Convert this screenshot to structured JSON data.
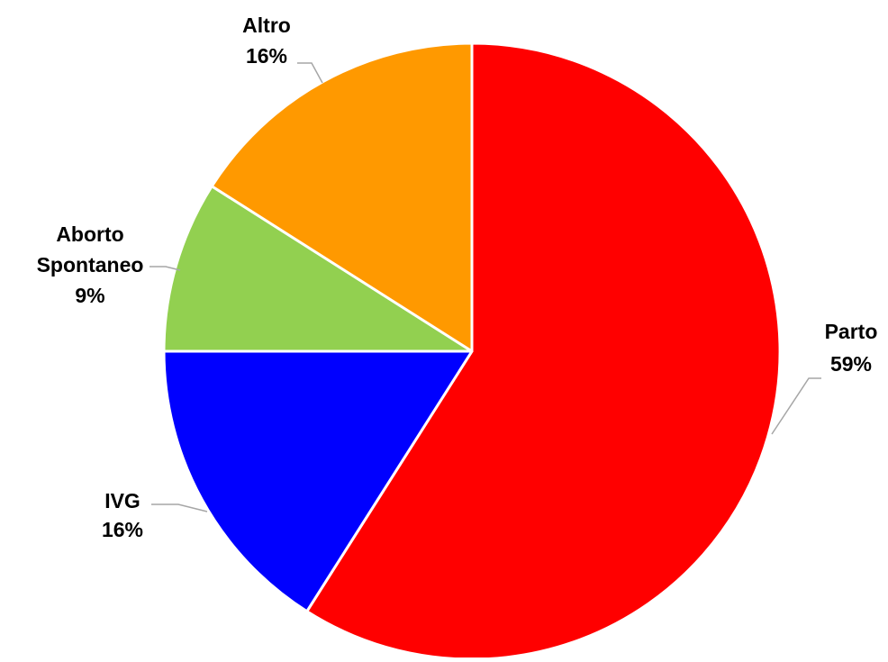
{
  "chart_data": {
    "type": "pie",
    "title": "",
    "slices": [
      {
        "name": "Parto",
        "value": 59,
        "label": "59%",
        "color": "#ff0000"
      },
      {
        "name": "IVG",
        "value": 16,
        "label": "16%",
        "color": "#0000ff"
      },
      {
        "name": "Aborto Spontaneo",
        "value": 9,
        "label": "9%",
        "color": "#92d050"
      },
      {
        "name": "Altro",
        "value": 16,
        "label": "16%",
        "color": "#ff9900"
      }
    ],
    "start": "12 o'clock",
    "direction": "clockwise",
    "leader_line_color": "#a6a6a6"
  }
}
